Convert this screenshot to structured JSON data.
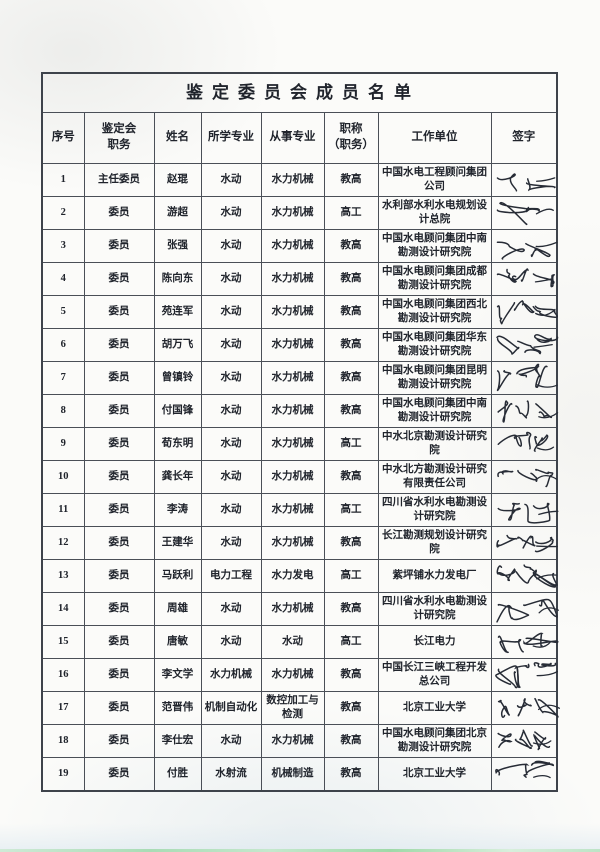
{
  "page": {
    "title": "鉴定委员会成员名单"
  },
  "colors": {
    "ink": "#20242c",
    "border": "#4a4f57",
    "paper": "#fbfbf9",
    "signature_ink": "#272c36",
    "scan_edge_green": "#9fd9a8"
  },
  "table": {
    "headers": [
      "序号",
      "鉴定会\n职务",
      "姓名",
      "所学专业",
      "从事专业",
      "职称\n（职务）",
      "工作单位",
      "签字"
    ],
    "rows": [
      {
        "no": "1",
        "role": "主任委员",
        "name": "赵琨",
        "major": "水动",
        "field": "水力机械",
        "title": "教高",
        "org": "中国水电工程顾问集团公司",
        "signature": "赵琨"
      },
      {
        "no": "2",
        "role": "委员",
        "name": "游超",
        "major": "水动",
        "field": "水力机械",
        "title": "高工",
        "org": "水利部水利水电规划设计总院",
        "signature": "游超"
      },
      {
        "no": "3",
        "role": "委员",
        "name": "张强",
        "major": "水动",
        "field": "水力机械",
        "title": "教高",
        "org": "中国水电顾问集团中南勘测设计研究院",
        "signature": "张强"
      },
      {
        "no": "4",
        "role": "委员",
        "name": "陈向东",
        "major": "水动",
        "field": "水力机械",
        "title": "教高",
        "org": "中国水电顾问集团成都勘测设计研究院",
        "signature": "陈向东"
      },
      {
        "no": "5",
        "role": "委员",
        "name": "苑连军",
        "major": "水动",
        "field": "水力机械",
        "title": "教高",
        "org": "中国水电顾问集团西北勘测设计研究院",
        "signature": "苑连军"
      },
      {
        "no": "6",
        "role": "委员",
        "name": "胡万飞",
        "major": "水动",
        "field": "水力机械",
        "title": "教高",
        "org": "中国水电顾问集团华东勘测设计研究院",
        "signature": "胡万飞"
      },
      {
        "no": "7",
        "role": "委员",
        "name": "曾镇铃",
        "major": "水动",
        "field": "水力机械",
        "title": "教高",
        "org": "中国水电顾问集团昆明勘测设计研究院",
        "signature": "曾镇铃"
      },
      {
        "no": "8",
        "role": "委员",
        "name": "付国锋",
        "major": "水动",
        "field": "水力机械",
        "title": "教高",
        "org": "中国水电顾问集团中南勘测设计研究院",
        "signature": "付国锋"
      },
      {
        "no": "9",
        "role": "委员",
        "name": "荀东明",
        "major": "水动",
        "field": "水力机械",
        "title": "高工",
        "org": "中水北京勘测设计研究院",
        "signature": "荀东明"
      },
      {
        "no": "10",
        "role": "委员",
        "name": "龚长年",
        "major": "水动",
        "field": "水力机械",
        "title": "教高",
        "org": "中水北方勘测设计研究有限责任公司",
        "signature": "龚长年"
      },
      {
        "no": "11",
        "role": "委员",
        "name": "李涛",
        "major": "水动",
        "field": "水力机械",
        "title": "高工",
        "org": "四川省水利水电勘测设计研究院",
        "signature": "李涛"
      },
      {
        "no": "12",
        "role": "委员",
        "name": "王建华",
        "major": "水动",
        "field": "水力机械",
        "title": "教高",
        "org": "长江勘测规划设计研究院",
        "signature": "王建华"
      },
      {
        "no": "13",
        "role": "委员",
        "name": "马跃利",
        "major": "电力工程",
        "field": "水力发电",
        "title": "高工",
        "org": "紫坪铺水力发电厂",
        "signature": "马跃利"
      },
      {
        "no": "14",
        "role": "委员",
        "name": "周雄",
        "major": "水动",
        "field": "水力机械",
        "title": "教高",
        "org": "四川省水利水电勘测设计研究院",
        "signature": "周雄"
      },
      {
        "no": "15",
        "role": "委员",
        "name": "唐敏",
        "major": "水动",
        "field": "水动",
        "title": "高工",
        "org": "长江电力",
        "signature": "唐敏"
      },
      {
        "no": "16",
        "role": "委员",
        "name": "李文学",
        "major": "水力机械",
        "field": "水力机械",
        "title": "教高",
        "org": "中国长江三峡工程开发总公司",
        "signature": "李文学"
      },
      {
        "no": "17",
        "role": "委员",
        "name": "范晋伟",
        "major": "机制自动化",
        "field": "数控加工与检测",
        "title": "教高",
        "org": "北京工业大学",
        "signature": "范晋伟"
      },
      {
        "no": "18",
        "role": "委员",
        "name": "李仕宏",
        "major": "水动",
        "field": "水力机械",
        "title": "教高",
        "org": "中国水电顾问集团北京勘测设计研究院",
        "signature": "李仕宏"
      },
      {
        "no": "19",
        "role": "委员",
        "name": "付胜",
        "major": "水射流",
        "field": "机械制造",
        "title": "教高",
        "org": "北京工业大学",
        "signature": "付胜"
      }
    ]
  }
}
